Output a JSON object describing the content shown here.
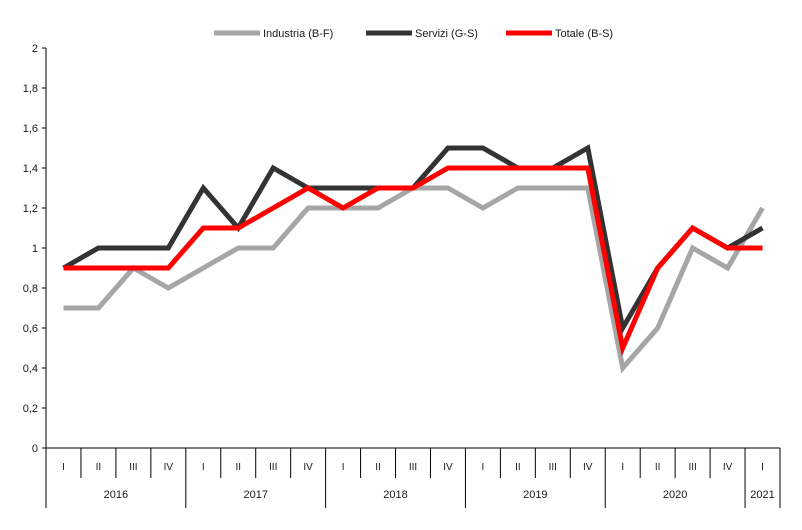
{
  "chart_data": {
    "type": "line",
    "title": "",
    "xlabel": "",
    "ylabel": "",
    "ylim": [
      0,
      2
    ],
    "yticks": [
      "0",
      "0,2",
      "0,4",
      "0,6",
      "0,8",
      "1",
      "1,2",
      "1,4",
      "1,6",
      "1,8",
      "2"
    ],
    "grid": false,
    "legend_position": "top-center",
    "categories": [
      "I",
      "II",
      "III",
      "IV",
      "I",
      "II",
      "III",
      "IV",
      "I",
      "II",
      "III",
      "IV",
      "I",
      "II",
      "III",
      "IV",
      "I",
      "II",
      "III",
      "IV",
      "I"
    ],
    "years": [
      {
        "label": "2016",
        "quarters": 4
      },
      {
        "label": "2017",
        "quarters": 4
      },
      {
        "label": "2018",
        "quarters": 4
      },
      {
        "label": "2019",
        "quarters": 4
      },
      {
        "label": "2020",
        "quarters": 4
      },
      {
        "label": "2021",
        "quarters": 1
      }
    ],
    "series": [
      {
        "name": "Industria (B-F)",
        "color": "#a6a6a6",
        "values": [
          0.7,
          0.7,
          0.9,
          0.8,
          0.9,
          1.0,
          1.0,
          1.2,
          1.2,
          1.2,
          1.3,
          1.3,
          1.2,
          1.3,
          1.3,
          1.3,
          0.4,
          0.6,
          1.0,
          0.9,
          1.2
        ]
      },
      {
        "name": "Servizi (G-S)",
        "color": "#333333",
        "values": [
          0.9,
          1.0,
          1.0,
          1.0,
          1.3,
          1.1,
          1.4,
          1.3,
          1.3,
          1.3,
          1.3,
          1.5,
          1.5,
          1.4,
          1.4,
          1.5,
          0.6,
          0.9,
          1.1,
          1.0,
          1.1
        ]
      },
      {
        "name": "Totale (B-S)",
        "color": "#ff0000",
        "values": [
          0.9,
          0.9,
          0.9,
          0.9,
          1.1,
          1.1,
          1.2,
          1.3,
          1.2,
          1.3,
          1.3,
          1.4,
          1.4,
          1.4,
          1.4,
          1.4,
          0.5,
          0.9,
          1.1,
          1.0,
          1.0
        ]
      }
    ]
  }
}
